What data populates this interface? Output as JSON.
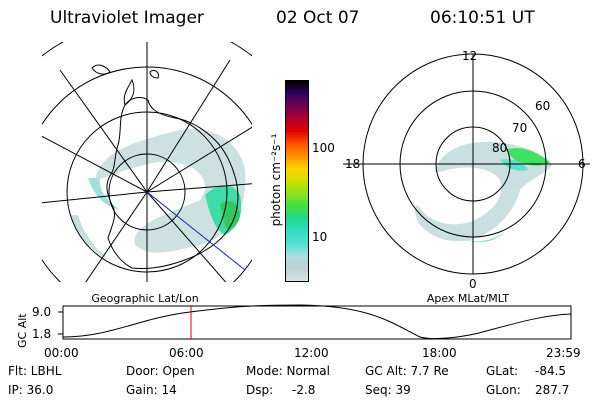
{
  "header": {
    "instrument": "Ultraviolet Imager",
    "date": "02 Oct 07",
    "time": "06:10:51 UT"
  },
  "colorbar": {
    "unit_label": "photon cm⁻²s⁻¹",
    "ticks": [
      "100",
      "10"
    ],
    "colors": [
      "#d8e4e4",
      "#c0d0d4",
      "#a8e0e0",
      "#50e0d0",
      "#30e0c0",
      "#20d890",
      "#40e040",
      "#90e020",
      "#d0e000",
      "#ffd000",
      "#ff9000",
      "#ff5000",
      "#e00000",
      "#b00030",
      "#700050",
      "#300060",
      "#000000"
    ]
  },
  "left_map": {
    "label": "Geographic Lat/Lon"
  },
  "right_map": {
    "label": "Apex MLat/MLT",
    "mlt_labels": {
      "top": "12",
      "left": "18",
      "right": "6",
      "bottom": "0"
    },
    "lat_labels": [
      "60",
      "70",
      "80"
    ]
  },
  "altitude_plot": {
    "ylabel": "GC Alt",
    "yticks": [
      "9.0",
      "1.8"
    ],
    "xticks": [
      "00:00",
      "06:00",
      "12:00",
      "18:00",
      "23:59"
    ],
    "marker_time": "06:10:51"
  },
  "status": {
    "filter": "Flt: LBHL",
    "ip": "IP: 36.0",
    "door": "Door: Open",
    "gain": "Gain: 14",
    "mode": "Mode: Normal",
    "dsp_label": "Dsp:",
    "dsp_value": "-2.8",
    "gc_alt": "GC Alt: 7.7 Re",
    "seq": "Seq: 39",
    "glat_label": "GLat:",
    "glat_value": "-84.5",
    "glon_label": "GLon:",
    "glon_value": "287.7"
  }
}
